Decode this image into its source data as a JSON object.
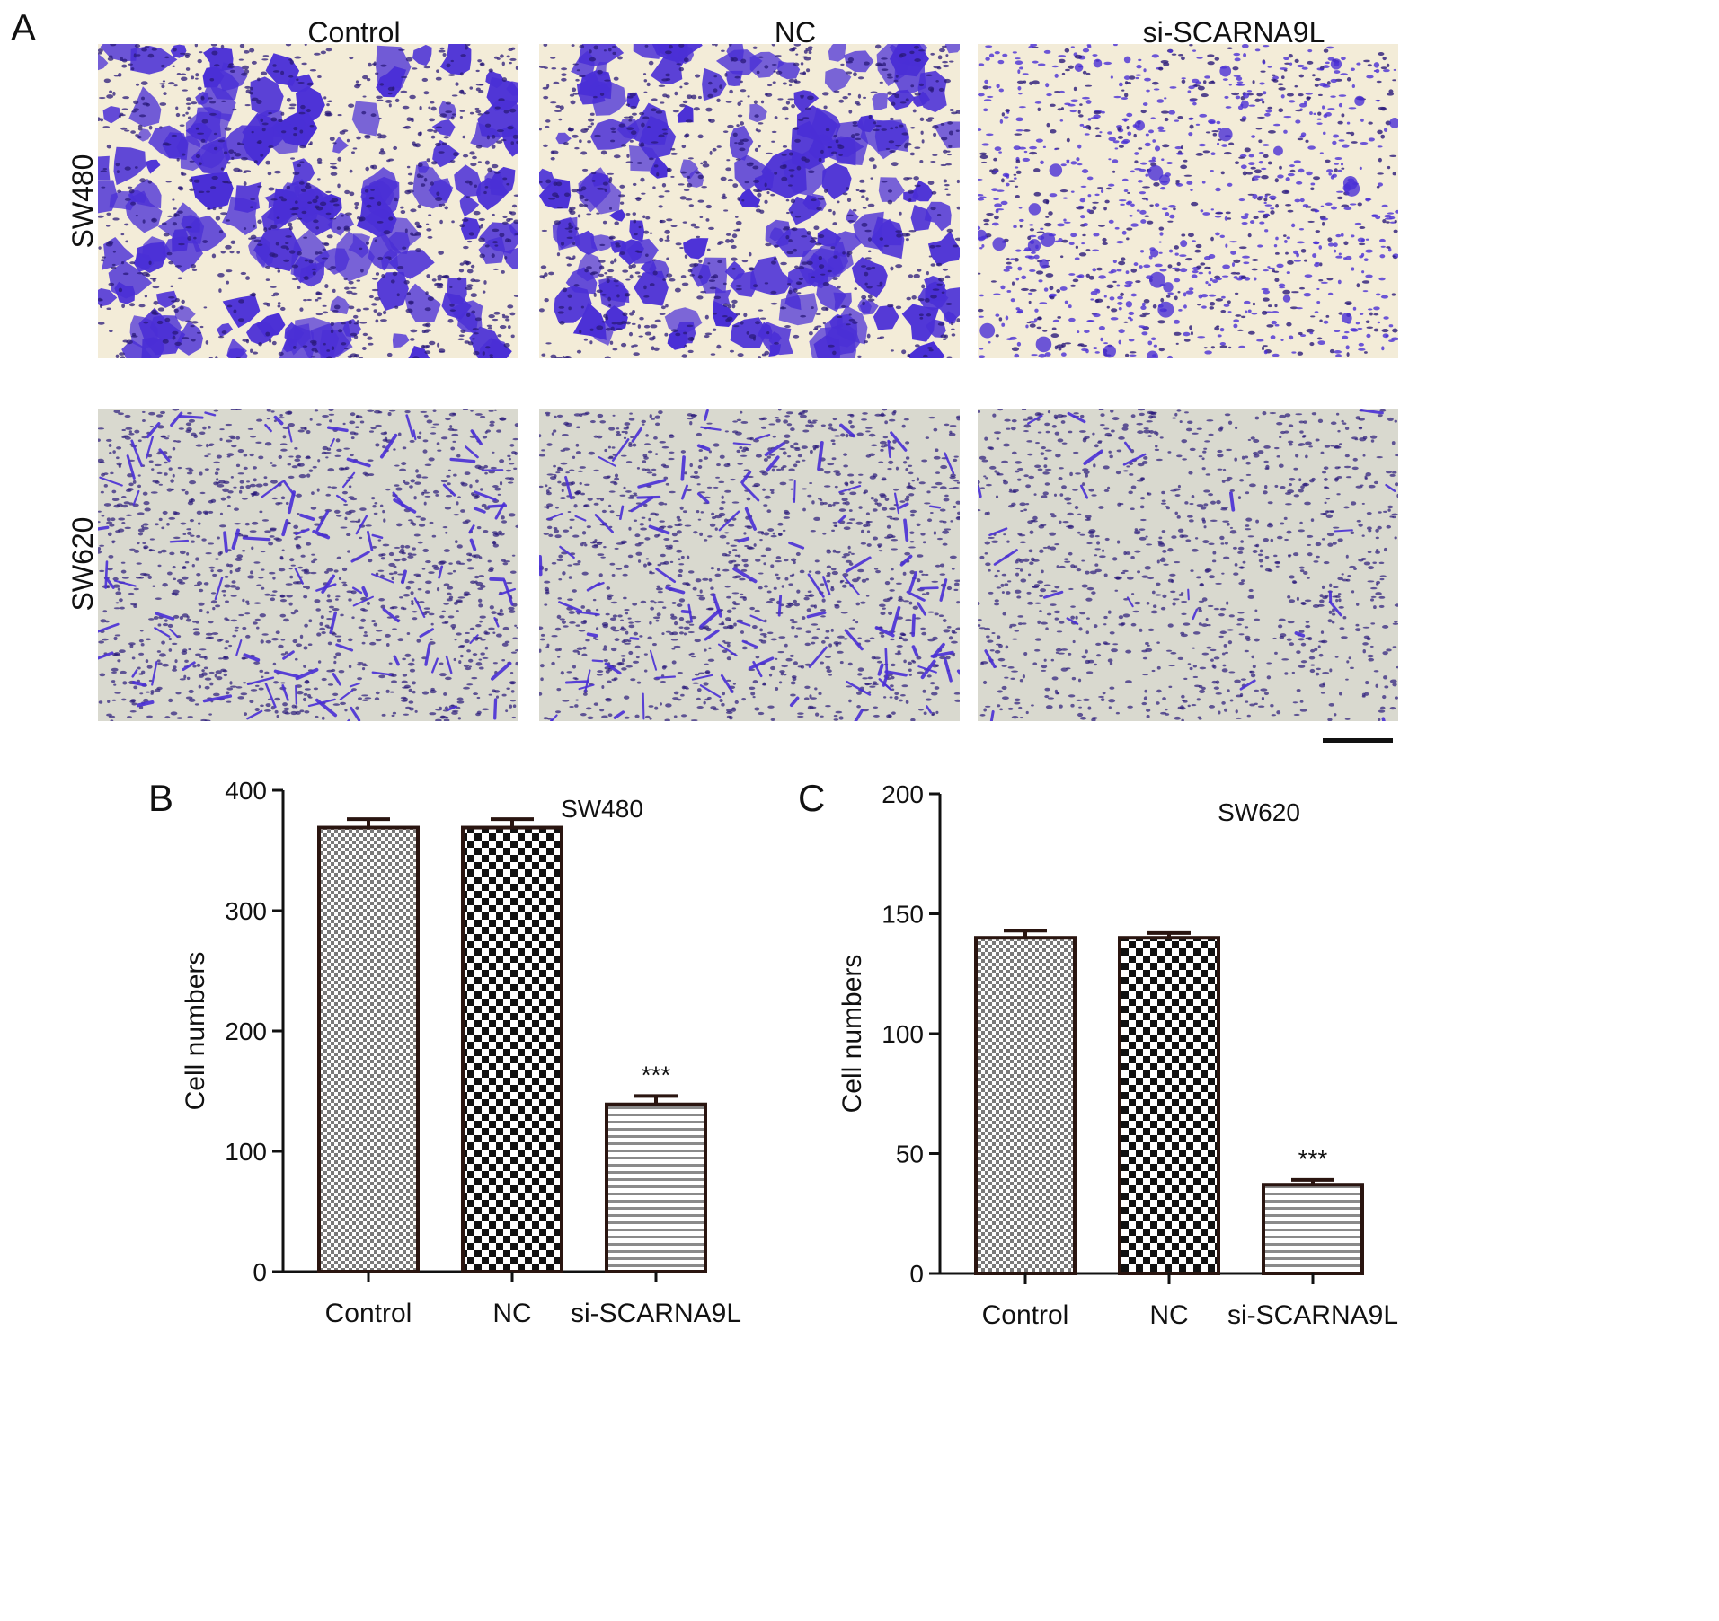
{
  "panel_a": {
    "letter": "A",
    "columns": [
      "Control",
      "NC",
      "si-SCARNA9L"
    ],
    "rows": [
      "SW480",
      "SW620"
    ],
    "colors": {
      "sw480_bg": "#f3ecd8",
      "sw620_bg": "#d9d9cf",
      "stain": "#4a2fd6",
      "stain_dark": "#2a1a7a"
    }
  },
  "panel_b": {
    "letter": "B"
  },
  "panel_c": {
    "letter": "C"
  },
  "chart_data": [
    {
      "type": "bar",
      "title": "SW480",
      "xlabel": "",
      "ylabel": "Cell numbers",
      "categories": [
        "Control",
        "NC",
        "si-SCARNA9L"
      ],
      "values": [
        369,
        369,
        139
      ],
      "errors": [
        7,
        7,
        7
      ],
      "annotations": [
        "",
        "",
        "***"
      ],
      "ylim": [
        0,
        400
      ],
      "yticks": [
        0,
        100,
        200,
        300,
        400
      ],
      "grid": false,
      "patterns": [
        "fine-check",
        "coarse-check",
        "stripes"
      ]
    },
    {
      "type": "bar",
      "title": "SW620",
      "xlabel": "",
      "ylabel": "Cell numbers",
      "categories": [
        "Control",
        "NC",
        "si-SCARNA9L"
      ],
      "values": [
        140,
        140,
        37
      ],
      "errors": [
        3,
        2,
        2
      ],
      "annotations": [
        "",
        "",
        "***"
      ],
      "ylim": [
        0,
        200
      ],
      "yticks": [
        0,
        50,
        100,
        150,
        200
      ],
      "grid": false,
      "patterns": [
        "fine-check",
        "coarse-check",
        "stripes"
      ]
    }
  ]
}
